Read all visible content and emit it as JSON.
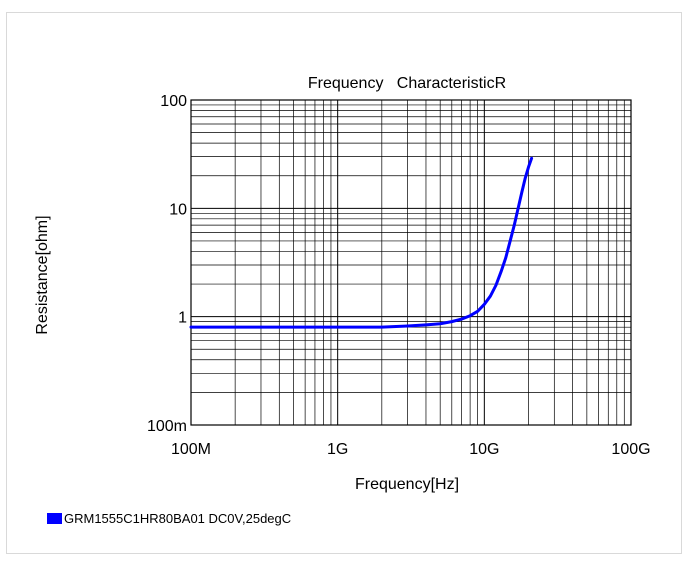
{
  "chart_data": {
    "type": "line",
    "title": "Frequency   CharacteristicR",
    "xlabel": "Frequency[Hz]",
    "ylabel": "Resistance[ohm]",
    "x_scale": "log",
    "y_scale": "log",
    "xlim": [
      100000000,
      100000000000
    ],
    "ylim": [
      0.1,
      100
    ],
    "x_ticks": [
      {
        "value": 100000000,
        "label": "100M"
      },
      {
        "value": 1000000000,
        "label": "1G"
      },
      {
        "value": 10000000000,
        "label": "10G"
      },
      {
        "value": 100000000000,
        "label": "100G"
      }
    ],
    "y_ticks": [
      {
        "value": 0.1,
        "label": "100m"
      },
      {
        "value": 1,
        "label": "1"
      },
      {
        "value": 10,
        "label": "10"
      },
      {
        "value": 100,
        "label": "100"
      }
    ],
    "grid": true,
    "legend_position": "bottom-left",
    "series": [
      {
        "name": "GRM1555C1HR80BA01 DC0V,25degC",
        "color": "#0000ff",
        "x": [
          100000000,
          200000000,
          500000000,
          1000000000,
          2000000000,
          3000000000,
          4000000000,
          5000000000,
          6000000000,
          7000000000,
          8000000000,
          9000000000,
          10000000000,
          11000000000,
          12000000000,
          13000000000,
          14000000000,
          15000000000,
          16000000000,
          17000000000,
          18000000000,
          19000000000,
          20000000000,
          21000000000
        ],
        "values": [
          0.8,
          0.8,
          0.8,
          0.8,
          0.8,
          0.82,
          0.84,
          0.86,
          0.9,
          0.95,
          1.02,
          1.12,
          1.3,
          1.55,
          1.95,
          2.6,
          3.5,
          5.0,
          7.0,
          10.0,
          14.0,
          19.0,
          24.0,
          29.0
        ]
      }
    ]
  }
}
